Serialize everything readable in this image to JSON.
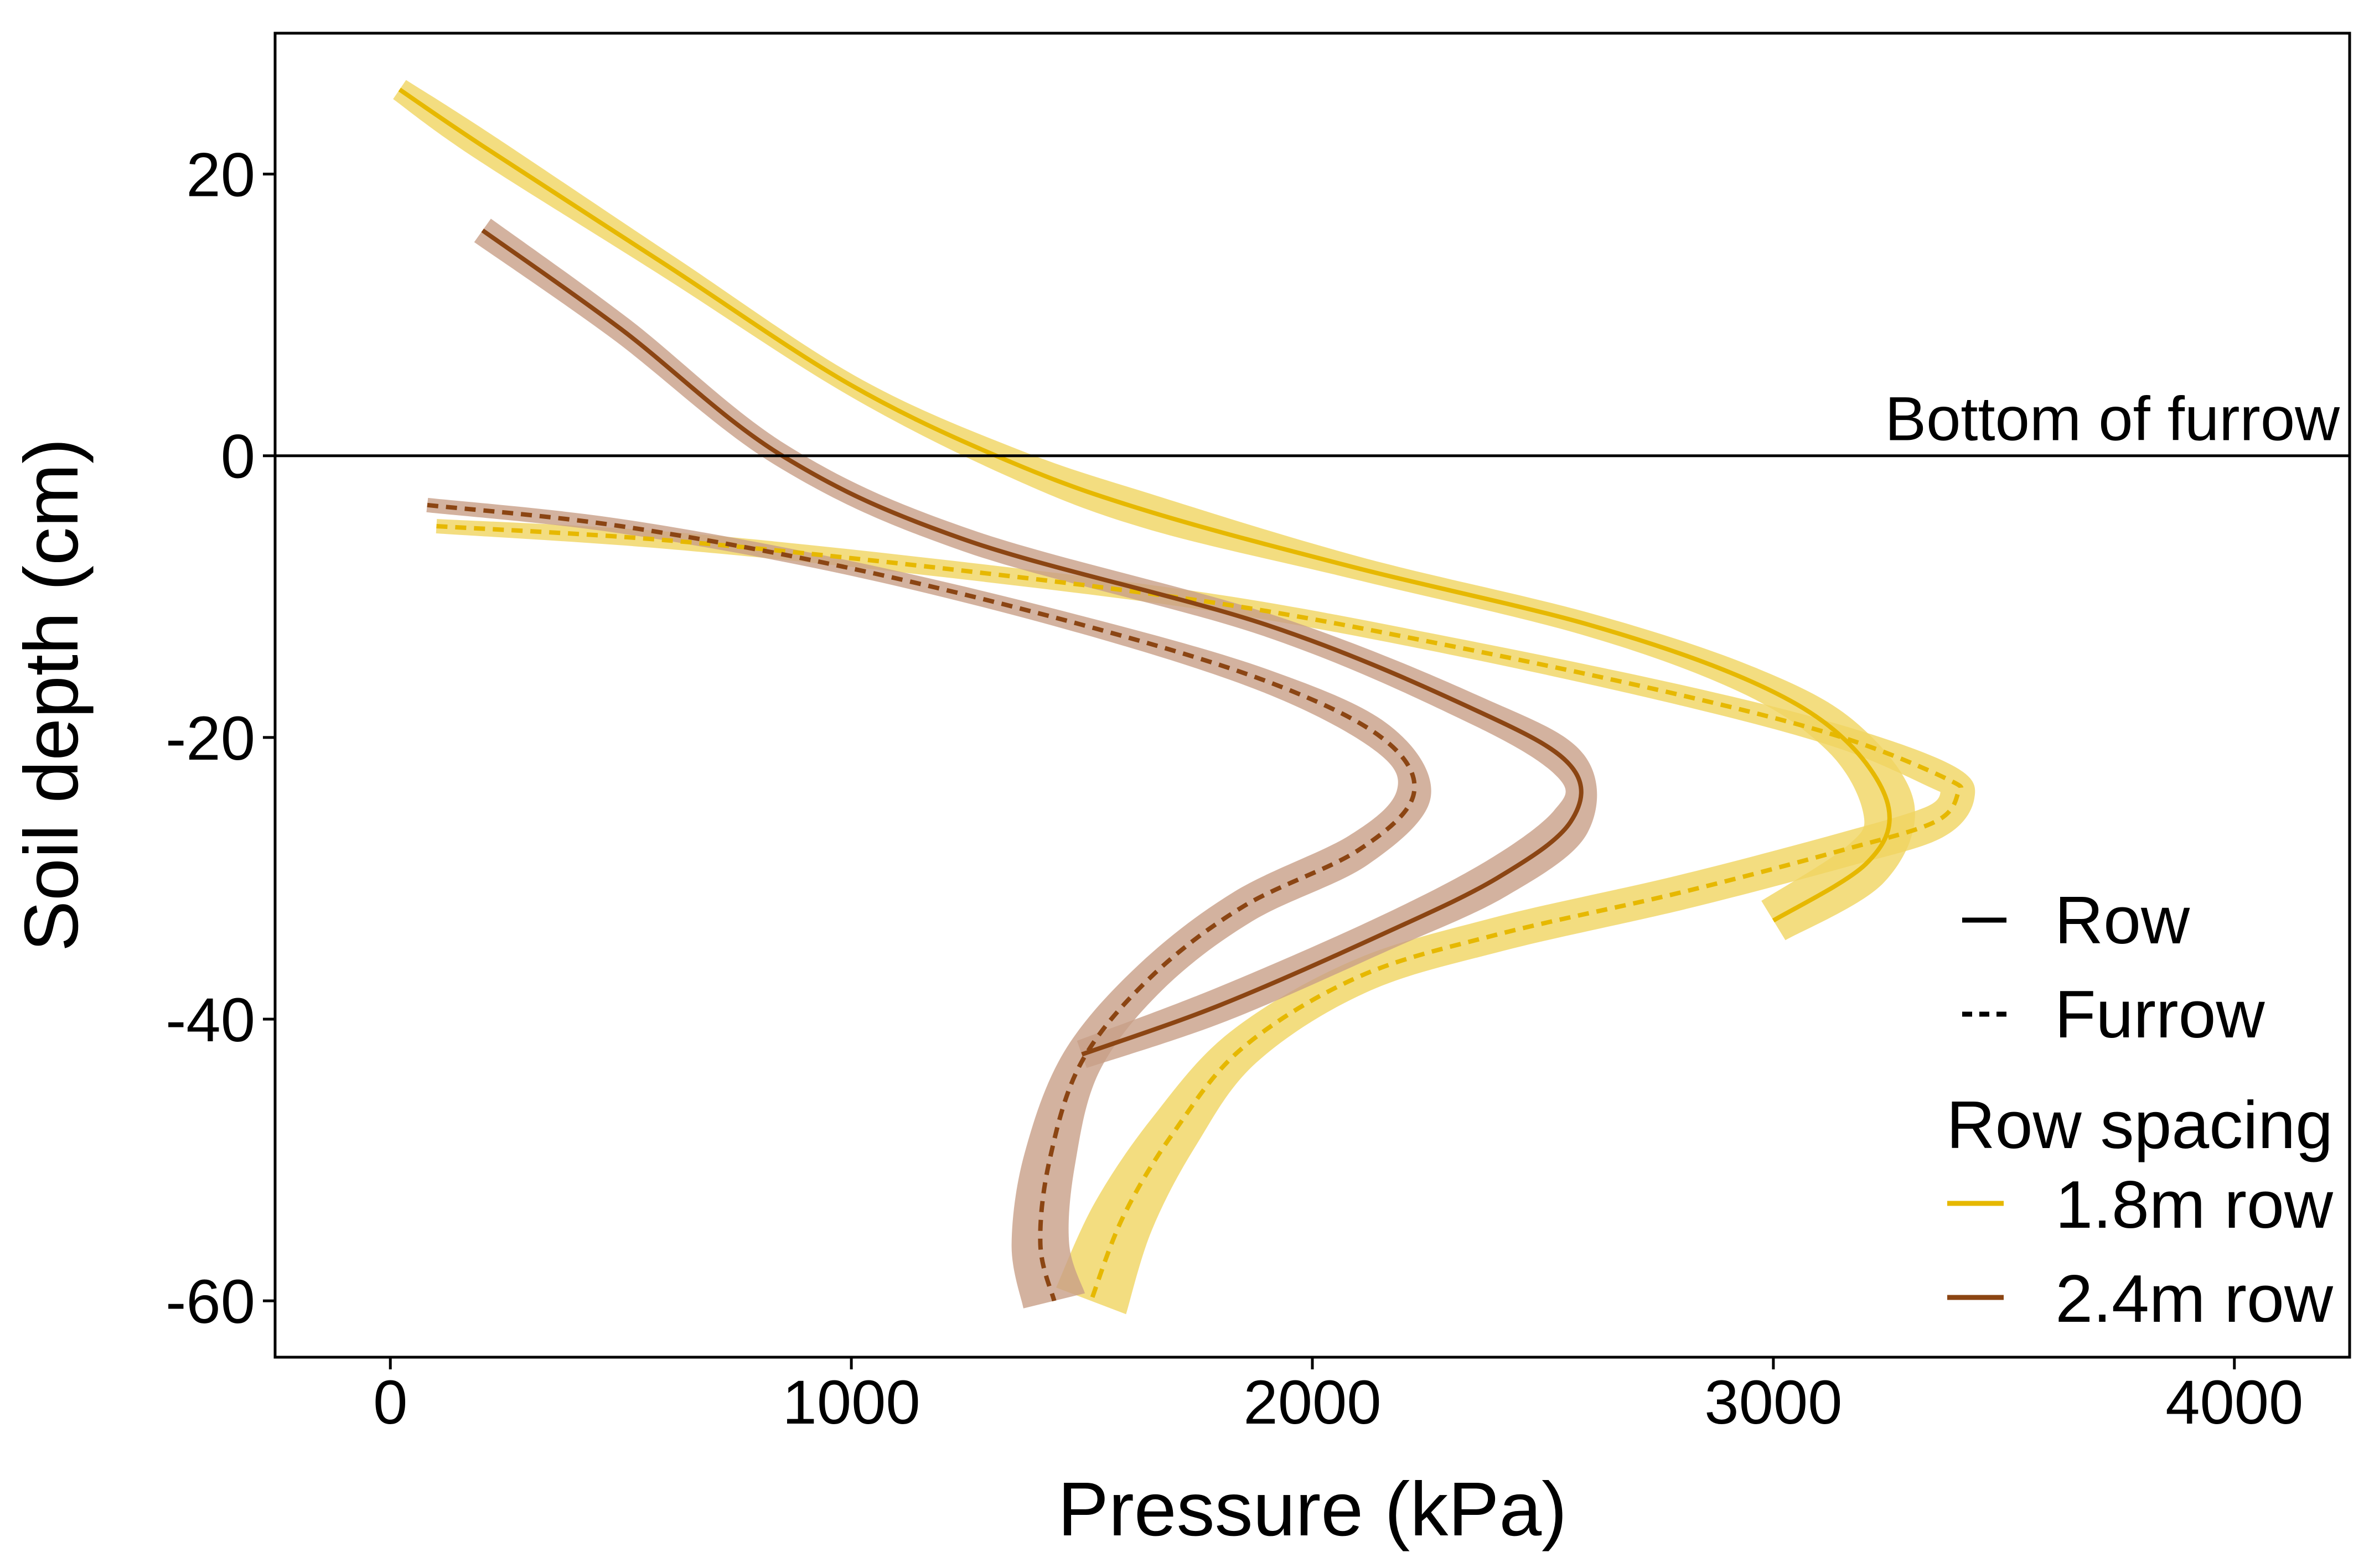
{
  "chart_data": {
    "type": "line",
    "title": "",
    "xlabel": "Pressure (kPa)",
    "ylabel": "Soil depth (cm)",
    "xlim": [
      -250,
      4250
    ],
    "ylim": [
      -64,
      30
    ],
    "xticks": [
      0,
      1000,
      2000,
      3000,
      4000
    ],
    "yticks": [
      20,
      0,
      -20,
      -40,
      -60
    ],
    "xtick_labels": [
      "0",
      "1000",
      "2000",
      "3000",
      "4000"
    ],
    "ytick_labels": [
      "20",
      "0",
      "-20",
      "-40",
      "-60"
    ],
    "grid": false,
    "hline": {
      "y": 0,
      "label": "Bottom of furrow"
    },
    "legend": {
      "position": "bottom-right",
      "linetype_title": "",
      "linetypes": [
        {
          "label": "Row",
          "dash": "solid"
        },
        {
          "label": "Furrow",
          "dash": "dashed"
        }
      ],
      "color_title": "Row spacing",
      "colors": [
        {
          "label": "1.8m row",
          "color": "#E6B800"
        },
        {
          "label": "2.4m row",
          "color": "#8B4513"
        }
      ]
    },
    "series": [
      {
        "name": "1.8m row - Furrow",
        "spacing": "1.8m row",
        "position": "Furrow",
        "color": "#E6B800",
        "band_color": "#F0D560",
        "dash": "dashed",
        "points": [
          [
            100,
            -5
          ],
          [
            600,
            -6
          ],
          [
            1200,
            -8
          ],
          [
            1800,
            -10.5
          ],
          [
            2300,
            -13.5
          ],
          [
            2800,
            -17
          ],
          [
            3150,
            -20
          ],
          [
            3380,
            -23
          ],
          [
            3400,
            -24
          ],
          [
            3350,
            -26
          ],
          [
            3150,
            -28
          ],
          [
            2800,
            -31
          ],
          [
            2400,
            -34
          ],
          [
            2100,
            -37
          ],
          [
            1850,
            -42
          ],
          [
            1700,
            -48
          ],
          [
            1590,
            -54
          ],
          [
            1520,
            -60
          ]
        ],
        "band_width": [
          5,
          6,
          6,
          6,
          6,
          7,
          8,
          10,
          12,
          12,
          12,
          12,
          12,
          12,
          14,
          18,
          22,
          26
        ]
      },
      {
        "name": "1.8m row - Row",
        "spacing": "1.8m row",
        "position": "Row",
        "color": "#E6B800",
        "band_color": "#F0D560",
        "dash": "solid",
        "points": [
          [
            20,
            26
          ],
          [
            200,
            22
          ],
          [
            600,
            13.5
          ],
          [
            1000,
            5
          ],
          [
            1350,
            -0.5
          ],
          [
            1650,
            -4
          ],
          [
            2100,
            -8
          ],
          [
            2600,
            -12
          ],
          [
            2950,
            -16
          ],
          [
            3150,
            -20
          ],
          [
            3250,
            -25
          ],
          [
            3200,
            -29
          ],
          [
            3000,
            -33
          ]
        ],
        "band_width": [
          8,
          10,
          8,
          7,
          10,
          12,
          8,
          8,
          10,
          14,
          18,
          18,
          16
        ]
      },
      {
        "name": "2.4m row - Furrow",
        "spacing": "2.4m row",
        "position": "Furrow",
        "color": "#8B4513",
        "band_color": "#C89F87",
        "dash": "dashed",
        "points": [
          [
            80,
            -3.5
          ],
          [
            500,
            -5
          ],
          [
            1000,
            -8
          ],
          [
            1500,
            -12
          ],
          [
            1900,
            -16
          ],
          [
            2150,
            -20
          ],
          [
            2220,
            -24
          ],
          [
            2100,
            -28
          ],
          [
            1850,
            -32
          ],
          [
            1650,
            -37
          ],
          [
            1500,
            -43
          ],
          [
            1430,
            -50
          ],
          [
            1410,
            -56
          ],
          [
            1440,
            -60
          ]
        ],
        "band_width": [
          5,
          5,
          5,
          6,
          8,
          10,
          12,
          12,
          12,
          12,
          14,
          18,
          20,
          22
        ]
      },
      {
        "name": "2.4m row - Row",
        "spacing": "2.4m row",
        "position": "Row",
        "color": "#8B4513",
        "band_color": "#C89F87",
        "dash": "solid",
        "points": [
          [
            200,
            16
          ],
          [
            500,
            9
          ],
          [
            850,
            0
          ],
          [
            1250,
            -6
          ],
          [
            1900,
            -12
          ],
          [
            2350,
            -18
          ],
          [
            2560,
            -22
          ],
          [
            2560,
            -26
          ],
          [
            2400,
            -30
          ],
          [
            2150,
            -34
          ],
          [
            1800,
            -39
          ],
          [
            1500,
            -42.5
          ]
        ],
        "band_width": [
          10,
          9,
          8,
          8,
          8,
          10,
          12,
          14,
          14,
          12,
          12,
          10
        ]
      }
    ]
  }
}
